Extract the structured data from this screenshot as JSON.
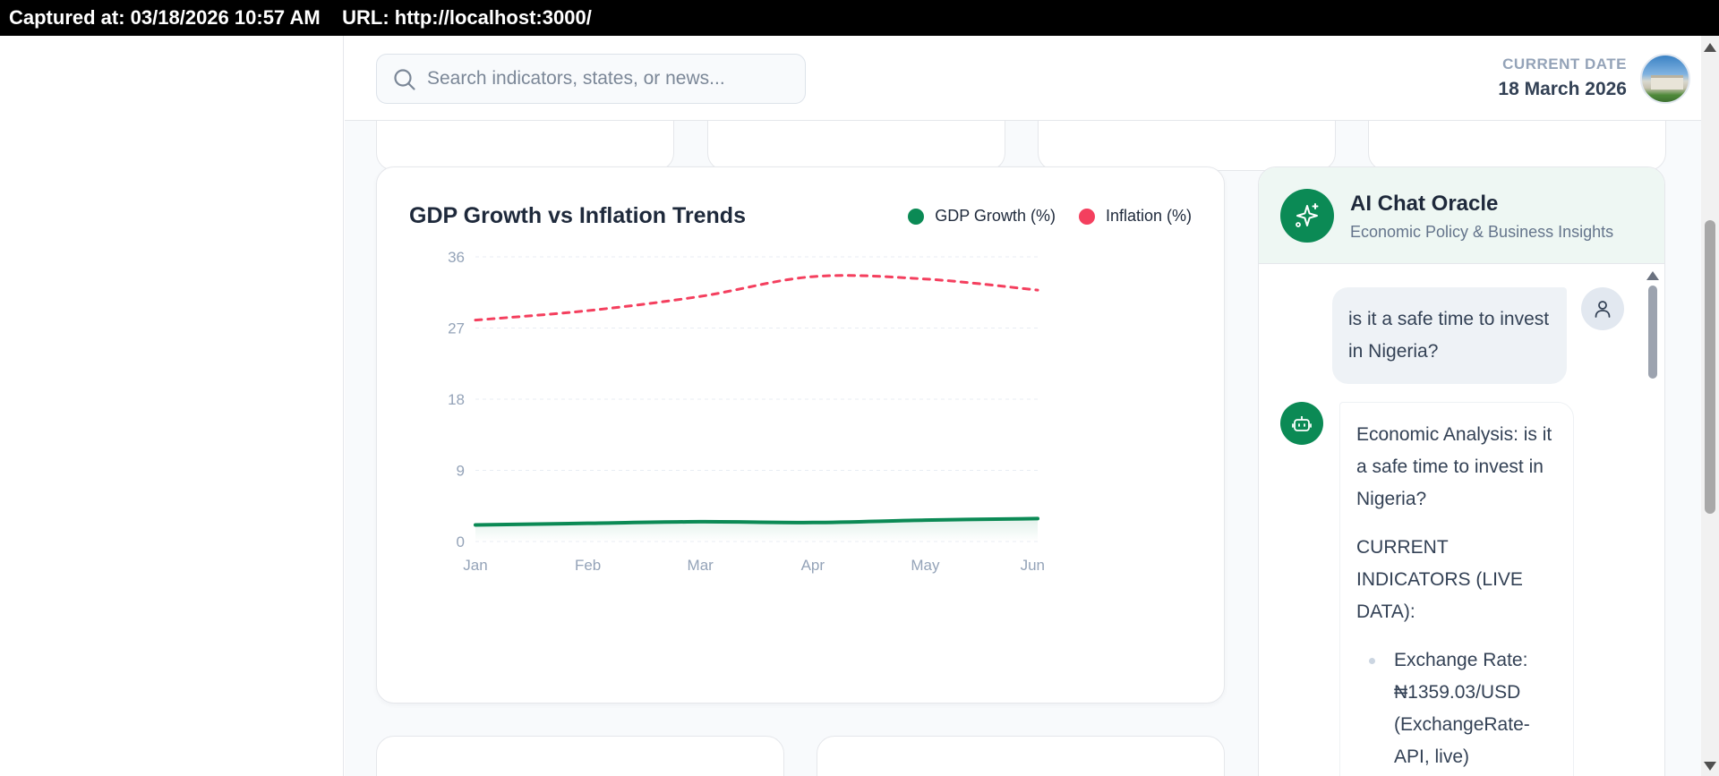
{
  "capture": {
    "text": "Captured at: 03/18/2026 10:57 AM    URL: http://localhost:3000/"
  },
  "header": {
    "search_placeholder": "Search indicators, states, or news...",
    "date_label": "CURRENT DATE",
    "date_value": "18 March 2026",
    "search_icon": "search-icon",
    "avatar": "avatar"
  },
  "chart": {
    "title": "GDP Growth vs Inflation Trends",
    "legend": [
      {
        "label": "GDP Growth (%)",
        "color": "#0b8a55"
      },
      {
        "label": "Inflation (%)",
        "color": "#f43f5e"
      }
    ]
  },
  "chart_data": {
    "type": "line",
    "title": "GDP Growth vs Inflation Trends",
    "categories": [
      "Jan",
      "Feb",
      "Mar",
      "Apr",
      "May",
      "Jun"
    ],
    "yticks": [
      0,
      9,
      18,
      27,
      36
    ],
    "ylim": [
      0,
      36
    ],
    "grid": true,
    "legend_position": "top-right",
    "series": [
      {
        "name": "GDP Growth (%)",
        "values": [
          2.1,
          2.3,
          2.5,
          2.4,
          2.7,
          2.9
        ],
        "color": "#0b8a55",
        "style": "solid",
        "area": true
      },
      {
        "name": "Inflation (%)",
        "values": [
          28.0,
          29.2,
          31.0,
          33.5,
          33.2,
          31.8
        ],
        "color": "#f43f5e",
        "style": "dashed"
      }
    ]
  },
  "chat": {
    "title": "AI Chat Oracle",
    "subtitle": "Economic Policy & Business Insights",
    "user_message": "is it a safe time to invest in Nigeria?",
    "bot_heading": "Economic Analysis: is it a safe time to invest in Nigeria?",
    "bot_section": "CURRENT INDICATORS (LIVE DATA):",
    "bot_bullets": [
      "Exchange Rate: ₦1359.03/USD (ExchangeRate-API, live)"
    ]
  }
}
